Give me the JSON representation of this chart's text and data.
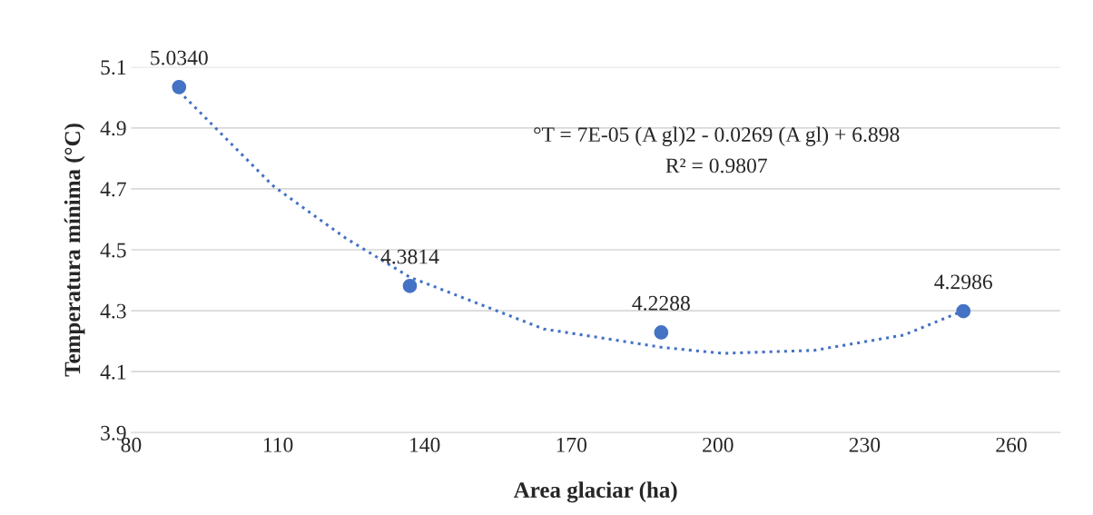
{
  "chart_data": {
    "type": "scatter",
    "xlabel": "Area glaciar (ha)",
    "ylabel": "Temperatura mínima (°C)",
    "xlim": [
      80,
      270
    ],
    "xticks": [
      80,
      110,
      140,
      170,
      200,
      230,
      260
    ],
    "ylim": [
      3.9,
      5.1
    ],
    "yticks": [
      3.9,
      4.1,
      4.3,
      4.5,
      4.7,
      4.9,
      5.1
    ],
    "grid": "y",
    "legend": false,
    "series": [
      {
        "color": "#4472c4",
        "marker": "circle",
        "x": [
          89.8,
          137.0,
          188.4,
          250.2
        ],
        "values": [
          5.034,
          4.3814,
          4.2288,
          4.2986
        ],
        "value_labels": [
          "5.0340",
          "4.3814",
          "4.2288",
          "4.2986"
        ]
      },
      {
        "type": "line",
        "color": "#4472c4",
        "line_style": "dotted",
        "marker": "none",
        "x": [
          89.8,
          109,
          123.7,
          137,
          164.4,
          188.4,
          201,
          219.7,
          238,
          250.2
        ],
        "values": [
          5.02,
          4.71,
          4.54,
          4.41,
          4.24,
          4.18,
          4.16,
          4.17,
          4.22,
          4.3
        ]
      }
    ],
    "annotations": [
      "°T = 7E-05 (A gl)2 - 0.0269 (A gl) + 6.898",
      "R² = 0.9807"
    ]
  }
}
